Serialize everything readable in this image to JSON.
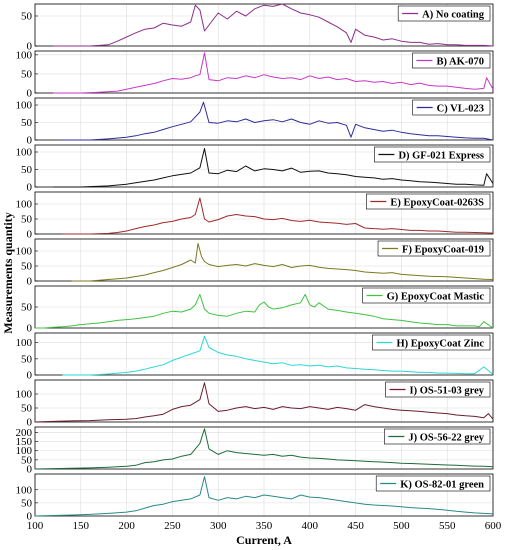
{
  "chart_data": {
    "type": "line",
    "layout": "stacked-panels",
    "xlabel": "Current, A",
    "ylabel": "Measurements quantity",
    "xlim": [
      100,
      600
    ],
    "xticks": [
      100,
      150,
      200,
      250,
      300,
      350,
      400,
      450,
      500,
      550,
      600
    ],
    "grid": true,
    "legend_position": "top-right",
    "panels": [
      {
        "label": "A) No coating",
        "color": "#8b2f8b",
        "ylim": [
          0,
          70
        ],
        "yticks": [
          0,
          50
        ],
        "x": [
          120,
          160,
          180,
          190,
          200,
          210,
          220,
          230,
          240,
          250,
          260,
          270,
          275,
          280,
          285,
          290,
          300,
          310,
          320,
          330,
          340,
          350,
          360,
          370,
          380,
          390,
          400,
          410,
          420,
          430,
          440,
          445,
          450,
          460,
          470,
          480,
          490,
          500,
          510,
          520,
          530,
          540,
          550,
          560,
          570,
          580,
          590,
          600
        ],
        "y": [
          0,
          0,
          2,
          8,
          15,
          22,
          28,
          30,
          38,
          35,
          33,
          40,
          68,
          60,
          25,
          35,
          55,
          45,
          58,
          50,
          62,
          68,
          66,
          70,
          62,
          55,
          52,
          48,
          40,
          32,
          22,
          6,
          28,
          18,
          15,
          10,
          12,
          8,
          6,
          6,
          3,
          4,
          2,
          2,
          1,
          1,
          1,
          0
        ]
      },
      {
        "label": "B) AK-070",
        "color": "#c837c8",
        "ylim": [
          0,
          110
        ],
        "yticks": [
          0,
          50,
          100
        ],
        "x": [
          120,
          150,
          170,
          190,
          200,
          210,
          220,
          230,
          240,
          250,
          260,
          270,
          275,
          280,
          285,
          290,
          300,
          310,
          320,
          330,
          340,
          350,
          360,
          370,
          380,
          390,
          400,
          410,
          420,
          430,
          440,
          450,
          460,
          470,
          480,
          490,
          500,
          510,
          520,
          530,
          540,
          550,
          560,
          570,
          580,
          590,
          593,
          600
        ],
        "y": [
          0,
          0,
          2,
          5,
          10,
          15,
          20,
          25,
          32,
          38,
          36,
          40,
          45,
          48,
          105,
          35,
          32,
          40,
          38,
          45,
          40,
          48,
          42,
          38,
          40,
          35,
          45,
          38,
          42,
          35,
          38,
          30,
          32,
          28,
          30,
          25,
          28,
          22,
          26,
          20,
          18,
          18,
          15,
          12,
          10,
          12,
          40,
          10
        ]
      },
      {
        "label": "C) VL-023",
        "color": "#2d2d9c",
        "ylim": [
          0,
          120
        ],
        "yticks": [
          0,
          50,
          100
        ],
        "x": [
          130,
          160,
          180,
          200,
          210,
          220,
          230,
          240,
          250,
          260,
          270,
          280,
          284,
          290,
          300,
          310,
          320,
          330,
          340,
          350,
          360,
          370,
          380,
          390,
          400,
          410,
          420,
          430,
          440,
          445,
          450,
          460,
          470,
          480,
          490,
          500,
          510,
          520,
          530,
          540,
          550,
          560,
          570,
          580,
          590,
          600
        ],
        "y": [
          0,
          0,
          3,
          8,
          12,
          18,
          22,
          30,
          38,
          45,
          52,
          80,
          108,
          50,
          48,
          55,
          52,
          60,
          50,
          55,
          58,
          52,
          60,
          50,
          45,
          55,
          48,
          50,
          42,
          8,
          45,
          35,
          30,
          25,
          28,
          22,
          18,
          15,
          12,
          12,
          10,
          8,
          6,
          5,
          5,
          0
        ]
      },
      {
        "label": "D) GF-021 Express",
        "color": "#111111",
        "ylim": [
          0,
          120
        ],
        "yticks": [
          0,
          50,
          100
        ],
        "x": [
          120,
          150,
          180,
          200,
          210,
          220,
          230,
          240,
          250,
          260,
          270,
          280,
          285,
          290,
          300,
          310,
          320,
          330,
          340,
          350,
          360,
          370,
          380,
          390,
          400,
          410,
          420,
          430,
          440,
          450,
          460,
          470,
          480,
          490,
          500,
          510,
          520,
          530,
          540,
          550,
          560,
          570,
          580,
          590,
          593,
          600
        ],
        "y": [
          0,
          0,
          3,
          8,
          12,
          16,
          20,
          26,
          32,
          36,
          40,
          55,
          110,
          40,
          38,
          48,
          44,
          60,
          46,
          52,
          50,
          46,
          54,
          42,
          45,
          46,
          40,
          38,
          35,
          30,
          28,
          26,
          22,
          24,
          20,
          18,
          15,
          14,
          12,
          10,
          8,
          8,
          6,
          5,
          38,
          10
        ]
      },
      {
        "label": "E) EpoxyCoat-0263S",
        "color": "#a02a2a",
        "ylim": [
          0,
          140
        ],
        "yticks": [
          0,
          50,
          100
        ],
        "x": [
          130,
          160,
          180,
          190,
          200,
          210,
          220,
          230,
          240,
          250,
          260,
          270,
          275,
          280,
          285,
          290,
          300,
          310,
          320,
          330,
          340,
          350,
          360,
          370,
          380,
          390,
          400,
          410,
          420,
          430,
          440,
          450,
          460,
          470,
          480,
          490,
          500,
          510,
          520,
          530,
          540,
          550,
          560,
          570,
          580,
          590,
          600
        ],
        "y": [
          0,
          0,
          2,
          5,
          10,
          18,
          25,
          30,
          38,
          42,
          50,
          55,
          65,
          120,
          50,
          40,
          48,
          60,
          65,
          60,
          58,
          50,
          48,
          52,
          45,
          42,
          46,
          40,
          38,
          36,
          32,
          35,
          20,
          18,
          16,
          18,
          15,
          12,
          12,
          10,
          10,
          8,
          6,
          6,
          5,
          4,
          3
        ]
      },
      {
        "label": "F) EpoxyCoat-019",
        "color": "#7a7a1e",
        "ylim": [
          0,
          140
        ],
        "yticks": [
          0,
          50,
          100
        ],
        "x": [
          140,
          160,
          180,
          200,
          210,
          220,
          230,
          240,
          250,
          260,
          270,
          275,
          278,
          282,
          285,
          290,
          300,
          310,
          320,
          330,
          340,
          350,
          360,
          370,
          380,
          390,
          400,
          410,
          420,
          430,
          440,
          450,
          460,
          470,
          480,
          490,
          500,
          510,
          520,
          530,
          540,
          550,
          560,
          570,
          580,
          590,
          600
        ],
        "y": [
          0,
          0,
          5,
          10,
          15,
          20,
          28,
          35,
          45,
          55,
          70,
          60,
          125,
          80,
          65,
          55,
          48,
          52,
          55,
          50,
          58,
          52,
          48,
          55,
          45,
          50,
          52,
          46,
          42,
          40,
          38,
          35,
          30,
          28,
          26,
          28,
          22,
          20,
          18,
          16,
          15,
          14,
          12,
          10,
          8,
          6,
          5
        ]
      },
      {
        "label": "G) EpoxyCoat Mastic",
        "color": "#3fc43f",
        "ylim": [
          0,
          100
        ],
        "yticks": [
          0,
          50
        ],
        "x": [
          100,
          110,
          120,
          130,
          140,
          150,
          160,
          170,
          180,
          190,
          200,
          210,
          220,
          230,
          240,
          250,
          260,
          270,
          275,
          280,
          285,
          290,
          300,
          310,
          320,
          330,
          340,
          345,
          350,
          355,
          360,
          370,
          380,
          390,
          395,
          400,
          405,
          410,
          420,
          430,
          440,
          450,
          460,
          470,
          480,
          490,
          500,
          510,
          520,
          530,
          540,
          550,
          560,
          570,
          580,
          585,
          590,
          600
        ],
        "y": [
          0,
          0,
          2,
          3,
          5,
          8,
          10,
          12,
          15,
          18,
          20,
          22,
          25,
          28,
          35,
          40,
          38,
          45,
          55,
          80,
          45,
          35,
          30,
          28,
          35,
          40,
          38,
          55,
          62,
          50,
          45,
          48,
          55,
          60,
          80,
          55,
          50,
          60,
          45,
          42,
          38,
          35,
          32,
          28,
          22,
          20,
          18,
          15,
          12,
          10,
          8,
          8,
          5,
          5,
          5,
          3,
          15,
          0
        ]
      },
      {
        "label": "H) EpoxyCoat Zinc",
        "color": "#2ed6d6",
        "ylim": [
          0,
          130
        ],
        "yticks": [
          0,
          50,
          100
        ],
        "x": [
          130,
          160,
          180,
          200,
          210,
          220,
          230,
          240,
          250,
          260,
          270,
          280,
          285,
          290,
          300,
          310,
          320,
          330,
          340,
          350,
          360,
          370,
          380,
          390,
          400,
          410,
          420,
          430,
          440,
          450,
          460,
          470,
          480,
          490,
          500,
          510,
          520,
          530,
          540,
          550,
          560,
          570,
          580,
          590,
          600
        ],
        "y": [
          0,
          0,
          3,
          8,
          12,
          18,
          25,
          32,
          45,
          55,
          65,
          75,
          120,
          85,
          70,
          62,
          58,
          50,
          45,
          40,
          35,
          38,
          30,
          32,
          28,
          30,
          25,
          28,
          22,
          20,
          18,
          16,
          14,
          12,
          12,
          10,
          8,
          8,
          6,
          6,
          5,
          4,
          4,
          25,
          2
        ]
      },
      {
        "label": "I) OS-51-03 grey",
        "color": "#6b1e2e",
        "ylim": [
          0,
          150
        ],
        "yticks": [
          0,
          50,
          100
        ],
        "x": [
          100,
          120,
          140,
          160,
          180,
          200,
          210,
          220,
          230,
          240,
          250,
          260,
          270,
          280,
          285,
          290,
          300,
          310,
          320,
          330,
          340,
          350,
          360,
          370,
          380,
          390,
          400,
          410,
          420,
          430,
          440,
          450,
          460,
          470,
          480,
          490,
          500,
          510,
          520,
          530,
          540,
          550,
          560,
          570,
          580,
          590,
          595,
          600
        ],
        "y": [
          0,
          2,
          4,
          5,
          8,
          10,
          12,
          18,
          22,
          28,
          45,
          55,
          60,
          80,
          140,
          65,
          38,
          42,
          50,
          55,
          48,
          52,
          45,
          55,
          50,
          48,
          55,
          50,
          45,
          52,
          48,
          42,
          62,
          55,
          50,
          45,
          42,
          40,
          38,
          35,
          32,
          30,
          25,
          22,
          20,
          15,
          30,
          10
        ]
      },
      {
        "label": "J) OS-56-22 grey",
        "color": "#1f6b3a",
        "ylim": [
          0,
          230
        ],
        "yticks": [
          0,
          50,
          100,
          150,
          200
        ],
        "x": [
          100,
          120,
          140,
          160,
          180,
          200,
          210,
          220,
          230,
          240,
          250,
          260,
          270,
          280,
          285,
          290,
          300,
          310,
          320,
          330,
          340,
          350,
          360,
          370,
          380,
          390,
          400,
          410,
          420,
          430,
          440,
          450,
          460,
          470,
          480,
          490,
          500,
          510,
          520,
          530,
          540,
          550,
          560,
          570,
          580,
          590,
          600
        ],
        "y": [
          0,
          2,
          4,
          6,
          10,
          15,
          20,
          35,
          40,
          50,
          55,
          70,
          80,
          140,
          220,
          110,
          80,
          100,
          90,
          85,
          80,
          75,
          80,
          70,
          75,
          65,
          60,
          58,
          55,
          50,
          48,
          45,
          42,
          40,
          38,
          35,
          32,
          30,
          28,
          26,
          24,
          22,
          20,
          18,
          16,
          15,
          12
        ]
      },
      {
        "label": "K) OS-82-01 green",
        "color": "#2a8a8a",
        "ylim": [
          0,
          160
        ],
        "yticks": [
          0,
          50,
          100
        ],
        "x": [
          100,
          120,
          140,
          160,
          180,
          200,
          210,
          220,
          230,
          240,
          250,
          260,
          270,
          280,
          285,
          290,
          300,
          310,
          320,
          330,
          340,
          350,
          360,
          370,
          380,
          390,
          400,
          410,
          420,
          430,
          440,
          450,
          460,
          470,
          480,
          490,
          500,
          510,
          520,
          530,
          540,
          550,
          560,
          570,
          580,
          590,
          600
        ],
        "y": [
          0,
          2,
          4,
          6,
          10,
          15,
          20,
          30,
          40,
          45,
          55,
          60,
          65,
          80,
          150,
          70,
          60,
          70,
          65,
          75,
          70,
          80,
          75,
          70,
          65,
          80,
          72,
          70,
          65,
          60,
          55,
          50,
          45,
          42,
          40,
          38,
          35,
          32,
          30,
          28,
          25,
          22,
          18,
          15,
          12,
          10,
          8
        ]
      }
    ]
  }
}
